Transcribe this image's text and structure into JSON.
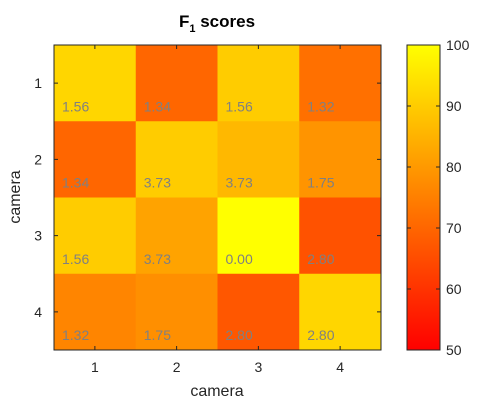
{
  "chart_data": {
    "type": "heatmap",
    "title_main": "F",
    "title_sub": "1",
    "title_rest": " scores",
    "xlabel": "camera",
    "ylabel": "camera",
    "x_categories": [
      "1",
      "2",
      "3",
      "4"
    ],
    "y_categories": [
      "1",
      "2",
      "3",
      "4"
    ],
    "values": [
      [
        92,
        70,
        90,
        72
      ],
      [
        70,
        90,
        86,
        79
      ],
      [
        90,
        82,
        100,
        66
      ],
      [
        76,
        78,
        67,
        92
      ]
    ],
    "cell_labels": [
      [
        "1.56",
        "1.34",
        "1.56",
        "1.32"
      ],
      [
        "1.34",
        "3.73",
        "3.73",
        "1.75"
      ],
      [
        "1.56",
        "3.73",
        "0.00",
        "2.80"
      ],
      [
        "1.32",
        "1.75",
        "2.80",
        "2.80"
      ]
    ],
    "colorbar": {
      "range": [
        50,
        100
      ],
      "ticks": [
        "50",
        "60",
        "70",
        "80",
        "90",
        "100"
      ],
      "colors": [
        "#ff0000",
        "#ffff00"
      ]
    }
  }
}
